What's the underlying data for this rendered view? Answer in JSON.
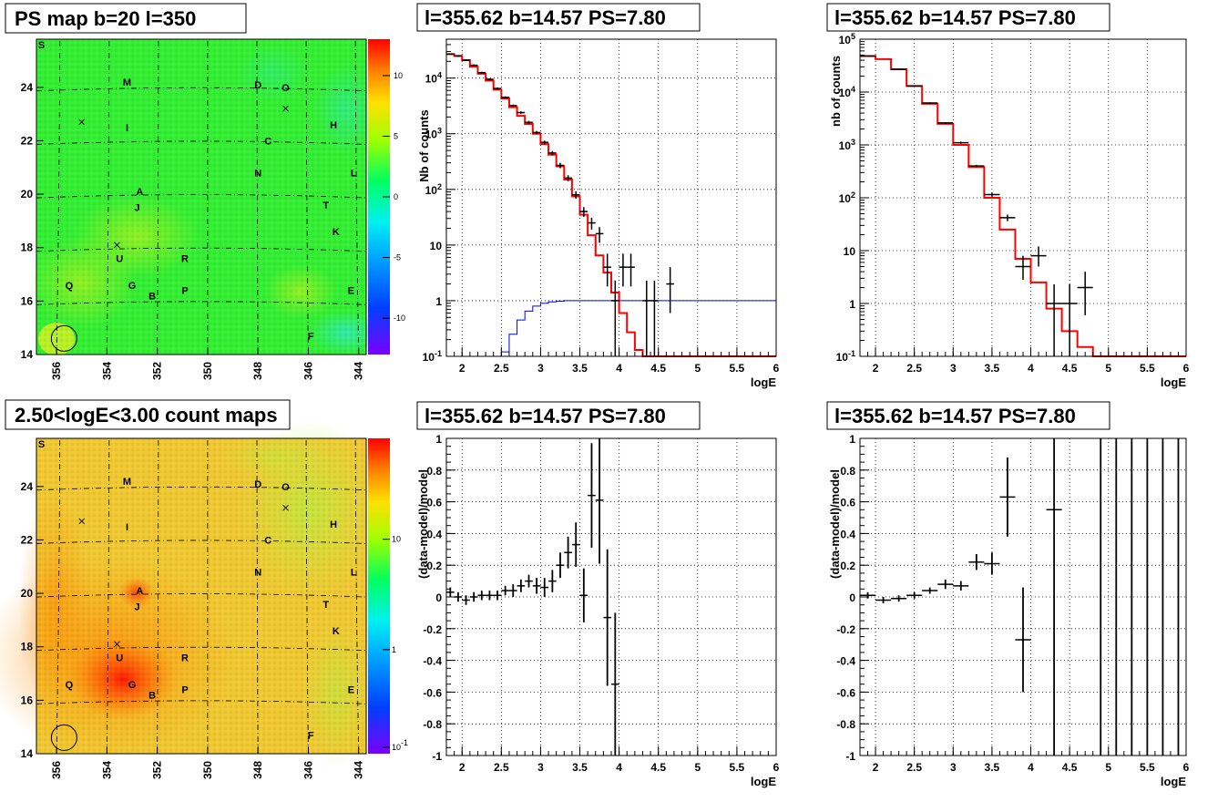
{
  "chart_data": [
    {
      "type": "heatmap",
      "title": "PS map b=20 l=350",
      "x_ticks": [
        "356",
        "354",
        "352",
        "350",
        "348",
        "346",
        "344"
      ],
      "y_ticks": [
        "14",
        "16",
        "18",
        "20",
        "22",
        "24"
      ],
      "xlim": [
        356.8,
        343.7
      ],
      "ylim": [
        14,
        25.8
      ],
      "colorbar_ticks": [
        "10",
        "5",
        "0",
        "-5",
        "-10"
      ],
      "colorbar_range": [
        -13,
        13
      ],
      "colorscale": "rainbow",
      "background_color": "#33ee33",
      "source_labels": [
        {
          "text": "S",
          "l": 356.6,
          "b": 25.6
        },
        {
          "text": "M",
          "l": 353.2,
          "b": 24.2
        },
        {
          "text": "D",
          "l": 348.0,
          "b": 24.1
        },
        {
          "text": "O",
          "l": 346.9,
          "b": 24.0
        },
        {
          "text": "I",
          "l": 353.2,
          "b": 22.5
        },
        {
          "text": "H",
          "l": 345.0,
          "b": 22.6
        },
        {
          "text": "C",
          "l": 347.6,
          "b": 22.0
        },
        {
          "text": "N",
          "l": 348.0,
          "b": 20.8
        },
        {
          "text": "L",
          "l": 344.2,
          "b": 20.8
        },
        {
          "text": "A",
          "l": 352.7,
          "b": 20.1
        },
        {
          "text": "J",
          "l": 352.8,
          "b": 19.5
        },
        {
          "text": "T",
          "l": 345.3,
          "b": 19.6
        },
        {
          "text": "K",
          "l": 344.9,
          "b": 18.6
        },
        {
          "text": "U",
          "l": 353.5,
          "b": 17.6
        },
        {
          "text": "R",
          "l": 350.9,
          "b": 17.6
        },
        {
          "text": "Q",
          "l": 355.5,
          "b": 16.6
        },
        {
          "text": "G",
          "l": 353.0,
          "b": 16.6
        },
        {
          "text": "B",
          "l": 352.2,
          "b": 16.2
        },
        {
          "text": "P",
          "l": 350.9,
          "b": 16.4
        },
        {
          "text": "E",
          "l": 344.3,
          "b": 16.4
        },
        {
          "text": "F",
          "l": 345.9,
          "b": 14.7
        }
      ],
      "crosses": [
        {
          "l": 355.0,
          "b": 22.7
        },
        {
          "l": 346.9,
          "b": 23.2
        },
        {
          "l": 353.6,
          "b": 18.1
        }
      ],
      "circle": {
        "l": 355.7,
        "b": 14.6
      }
    },
    {
      "type": "line",
      "title": "l=355.62 b=14.57 PS=7.80",
      "xlabel": "logE",
      "ylabel": "Nb of counts",
      "xlim": [
        1.8,
        6
      ],
      "ylim": [
        0.1,
        50000
      ],
      "yscale": "log",
      "x_ticks": [
        "2",
        "2.5",
        "3",
        "3.5",
        "4",
        "4.5",
        "5",
        "5.5",
        "6"
      ],
      "y_ticks": [
        "10^{-1}",
        "1",
        "10",
        "10^{2}",
        "10^{3}",
        "10^{4}"
      ],
      "grid": true,
      "data_points": [
        {
          "x": 1.85,
          "y": 27000,
          "err": [
            26200,
            27800
          ]
        },
        {
          "x": 1.95,
          "y": 25000,
          "err": [
            24200,
            25800
          ]
        },
        {
          "x": 2.05,
          "y": 21000,
          "err": [
            20300,
            21700
          ]
        },
        {
          "x": 2.15,
          "y": 17000,
          "err": [
            16400,
            17600
          ]
        },
        {
          "x": 2.25,
          "y": 12500,
          "err": [
            12000,
            13000
          ]
        },
        {
          "x": 2.35,
          "y": 9500,
          "err": [
            9100,
            9900
          ]
        },
        {
          "x": 2.45,
          "y": 6500,
          "err": [
            6200,
            6800
          ]
        },
        {
          "x": 2.55,
          "y": 4500,
          "err": [
            4300,
            4700
          ]
        },
        {
          "x": 2.65,
          "y": 3200,
          "err": [
            3050,
            3350
          ]
        },
        {
          "x": 2.75,
          "y": 2400,
          "err": [
            2270,
            2530
          ]
        },
        {
          "x": 2.85,
          "y": 1600,
          "err": [
            1500,
            1700
          ]
        },
        {
          "x": 2.95,
          "y": 1050,
          "err": [
            980,
            1120
          ]
        },
        {
          "x": 3.05,
          "y": 700,
          "err": [
            650,
            750
          ]
        },
        {
          "x": 3.15,
          "y": 450,
          "err": [
            410,
            490
          ]
        },
        {
          "x": 3.25,
          "y": 270,
          "err": [
            240,
            300
          ]
        },
        {
          "x": 3.35,
          "y": 160,
          "err": [
            140,
            180
          ]
        },
        {
          "x": 3.45,
          "y": 80,
          "err": [
            68,
            92
          ]
        },
        {
          "x": 3.55,
          "y": 40,
          "err": [
            32,
            48
          ]
        },
        {
          "x": 3.65,
          "y": 25,
          "err": [
            19,
            31
          ]
        },
        {
          "x": 3.75,
          "y": 16,
          "err": [
            11,
            21
          ]
        },
        {
          "x": 3.85,
          "y": 4,
          "err": [
            1.8,
            7
          ]
        },
        {
          "x": 3.95,
          "y": 1,
          "err": [
            0.1,
            2.3
          ]
        },
        {
          "x": 4.05,
          "y": 4,
          "err": [
            1.8,
            7
          ]
        },
        {
          "x": 4.15,
          "y": 4,
          "err": [
            1.8,
            7
          ]
        },
        {
          "x": 4.35,
          "y": 1,
          "err": [
            0.1,
            2.3
          ]
        },
        {
          "x": 4.45,
          "y": 1,
          "err": [
            0.1,
            2.3
          ]
        },
        {
          "x": 4.65,
          "y": 2,
          "err": [
            0.6,
            4
          ]
        }
      ],
      "model_steps": {
        "edges": [
          1.8,
          1.9,
          2.0,
          2.1,
          2.2,
          2.3,
          2.4,
          2.5,
          2.6,
          2.7,
          2.8,
          2.9,
          3.0,
          3.1,
          3.2,
          3.3,
          3.4,
          3.5,
          3.6,
          3.7,
          3.8,
          3.9,
          4.0,
          4.1,
          4.2,
          4.3,
          4.4,
          4.5,
          6.0
        ],
        "values": [
          27000,
          25000,
          21000,
          16000,
          12000,
          9000,
          6200,
          4300,
          3000,
          2100,
          1500,
          1000,
          650,
          420,
          260,
          150,
          75,
          35,
          15,
          6.5,
          3.2,
          1.4,
          0.6,
          0.27,
          0.13,
          0.1,
          0.1,
          0.1
        ]
      },
      "background_steps": {
        "edges": [
          2.5,
          2.6,
          2.7,
          2.8,
          2.9,
          3.0,
          3.1,
          3.2,
          3.3,
          3.4,
          3.5,
          6.0
        ],
        "values": [
          0.12,
          0.25,
          0.45,
          0.65,
          0.8,
          0.9,
          0.95,
          0.98,
          1.0,
          1.0,
          1.0
        ]
      }
    },
    {
      "type": "line",
      "title": "l=355.62 b=14.57 PS=7.80",
      "xlabel": "logE",
      "ylabel": "nb of counts",
      "xlim": [
        1.8,
        6
      ],
      "ylim": [
        0.1,
        100000
      ],
      "yscale": "log",
      "x_ticks": [
        "2",
        "2.5",
        "3",
        "3.5",
        "4",
        "4.5",
        "5",
        "5.5",
        "6"
      ],
      "y_ticks": [
        "10^{-1}",
        "1",
        "10",
        "10^{2}",
        "10^{3}",
        "10^{4}",
        "10^{5}"
      ],
      "grid": true,
      "data_points": [
        {
          "x": 1.9,
          "y": 48000,
          "err": [
            47000,
            49000
          ]
        },
        {
          "x": 2.3,
          "y": 27000,
          "err": [
            26500,
            27500
          ]
        },
        {
          "x": 2.5,
          "y": 13000,
          "err": [
            12700,
            13300
          ]
        },
        {
          "x": 2.7,
          "y": 6200,
          "err": [
            6000,
            6400
          ]
        },
        {
          "x": 2.9,
          "y": 2600,
          "err": [
            2500,
            2700
          ]
        },
        {
          "x": 3.1,
          "y": 1100,
          "err": [
            1050,
            1150
          ]
        },
        {
          "x": 3.3,
          "y": 400,
          "err": [
            380,
            420
          ]
        },
        {
          "x": 3.5,
          "y": 115,
          "err": [
            105,
            125
          ]
        },
        {
          "x": 3.7,
          "y": 42,
          "err": [
            36,
            48
          ]
        },
        {
          "x": 3.9,
          "y": 5,
          "err": [
            2.8,
            8
          ]
        },
        {
          "x": 4.1,
          "y": 8,
          "err": [
            5,
            12
          ]
        },
        {
          "x": 4.3,
          "y": 1,
          "err": [
            0.1,
            2.3
          ]
        },
        {
          "x": 4.5,
          "y": 1,
          "err": [
            0.1,
            2.3
          ]
        },
        {
          "x": 4.7,
          "y": 2,
          "err": [
            0.6,
            4
          ]
        }
      ],
      "model_steps": {
        "edges": [
          1.8,
          2.0,
          2.2,
          2.4,
          2.6,
          2.8,
          3.0,
          3.2,
          3.4,
          3.6,
          3.8,
          4.0,
          4.2,
          4.4,
          4.6,
          4.8,
          6.0
        ],
        "values": [
          48000,
          42000,
          27000,
          13000,
          6000,
          2500,
          1000,
          380,
          100,
          25,
          7,
          2.5,
          0.8,
          0.3,
          0.15,
          0.1
        ]
      }
    },
    {
      "type": "heatmap",
      "title": "2.50<logE<3.00 count maps",
      "x_ticks": [
        "356",
        "354",
        "352",
        "350",
        "348",
        "346",
        "344"
      ],
      "y_ticks": [
        "14",
        "16",
        "18",
        "20",
        "22",
        "24"
      ],
      "xlim": [
        356.8,
        343.7
      ],
      "ylim": [
        14,
        25.8
      ],
      "colorbar_ticks": [
        "10",
        "1",
        "10^{-1}"
      ],
      "colorscale": "rainbow-log",
      "background_color": "#f0c832",
      "hotspot": {
        "l": 353.0,
        "b": 16.8
      },
      "source_labels": [
        {
          "text": "S",
          "l": 356.6,
          "b": 25.6
        },
        {
          "text": "M",
          "l": 353.2,
          "b": 24.2
        },
        {
          "text": "D",
          "l": 348.0,
          "b": 24.1
        },
        {
          "text": "O",
          "l": 346.9,
          "b": 24.0
        },
        {
          "text": "I",
          "l": 353.2,
          "b": 22.5
        },
        {
          "text": "H",
          "l": 345.0,
          "b": 22.6
        },
        {
          "text": "C",
          "l": 347.6,
          "b": 22.0
        },
        {
          "text": "N",
          "l": 348.0,
          "b": 20.8
        },
        {
          "text": "L",
          "l": 344.2,
          "b": 20.8
        },
        {
          "text": "A",
          "l": 352.7,
          "b": 20.1
        },
        {
          "text": "J",
          "l": 352.8,
          "b": 19.5
        },
        {
          "text": "T",
          "l": 345.3,
          "b": 19.6
        },
        {
          "text": "K",
          "l": 344.9,
          "b": 18.6
        },
        {
          "text": "U",
          "l": 353.5,
          "b": 17.6
        },
        {
          "text": "R",
          "l": 350.9,
          "b": 17.6
        },
        {
          "text": "Q",
          "l": 355.5,
          "b": 16.6
        },
        {
          "text": "G",
          "l": 353.0,
          "b": 16.6
        },
        {
          "text": "B",
          "l": 352.2,
          "b": 16.2
        },
        {
          "text": "P",
          "l": 350.9,
          "b": 16.4
        },
        {
          "text": "E",
          "l": 344.3,
          "b": 16.4
        },
        {
          "text": "F",
          "l": 345.9,
          "b": 14.7
        }
      ],
      "crosses": [
        {
          "l": 355.0,
          "b": 22.7
        },
        {
          "l": 346.9,
          "b": 23.2
        },
        {
          "l": 353.6,
          "b": 18.1
        }
      ],
      "circle": {
        "l": 355.7,
        "b": 14.6
      }
    },
    {
      "type": "scatter",
      "title": "l=355.62 b=14.57 PS=7.80",
      "xlabel": "logE",
      "ylabel": "(data-model)/model",
      "xlim": [
        1.8,
        6
      ],
      "ylim": [
        -1,
        1
      ],
      "x_ticks": [
        "2",
        "2.5",
        "3",
        "3.5",
        "4",
        "4.5",
        "5",
        "5.5",
        "6"
      ],
      "y_ticks": [
        "-1",
        "-0.8",
        "-0.6",
        "-0.4",
        "-0.2",
        "0",
        "0.2",
        "0.4",
        "0.6",
        "0.8",
        "1"
      ],
      "grid": true,
      "points": [
        {
          "x": 1.85,
          "y": 0.03,
          "e": 0.03
        },
        {
          "x": 1.95,
          "y": 0.0,
          "e": 0.03
        },
        {
          "x": 2.05,
          "y": -0.02,
          "e": 0.03
        },
        {
          "x": 2.15,
          "y": 0.0,
          "e": 0.03
        },
        {
          "x": 2.25,
          "y": 0.01,
          "e": 0.03
        },
        {
          "x": 2.35,
          "y": 0.01,
          "e": 0.03
        },
        {
          "x": 2.45,
          "y": 0.01,
          "e": 0.03
        },
        {
          "x": 2.55,
          "y": 0.04,
          "e": 0.03
        },
        {
          "x": 2.65,
          "y": 0.04,
          "e": 0.04
        },
        {
          "x": 2.75,
          "y": 0.07,
          "e": 0.04
        },
        {
          "x": 2.85,
          "y": 0.1,
          "e": 0.04
        },
        {
          "x": 2.95,
          "y": 0.07,
          "e": 0.05
        },
        {
          "x": 3.05,
          "y": 0.06,
          "e": 0.06
        },
        {
          "x": 3.15,
          "y": 0.1,
          "e": 0.07
        },
        {
          "x": 3.25,
          "y": 0.2,
          "e": 0.08
        },
        {
          "x": 3.35,
          "y": 0.28,
          "e": 0.1
        },
        {
          "x": 3.45,
          "y": 0.33,
          "e": 0.14
        },
        {
          "x": 3.55,
          "y": 0.01,
          "e": 0.17
        },
        {
          "x": 3.65,
          "y": 0.64,
          "e": 0.33
        },
        {
          "x": 3.75,
          "y": 0.61,
          "e": 0.4
        },
        {
          "x": 3.85,
          "y": -0.13,
          "e": 0.43
        },
        {
          "x": 3.95,
          "y": -0.55,
          "e": 0.45
        }
      ]
    },
    {
      "type": "scatter",
      "title": "l=355.62 b=14.57 PS=7.80",
      "xlabel": "logE",
      "ylabel": "(data-model)/model",
      "xlim": [
        1.8,
        6
      ],
      "ylim": [
        -1,
        1
      ],
      "x_ticks": [
        "2",
        "2.5",
        "3",
        "3.5",
        "4",
        "4.5",
        "5",
        "5.5",
        "6"
      ],
      "y_ticks": [
        "-1",
        "-0.8",
        "-0.6",
        "-0.4",
        "-0.2",
        "0",
        "0.2",
        "0.4",
        "0.6",
        "0.8",
        "1"
      ],
      "grid": true,
      "points": [
        {
          "x": 1.9,
          "y": 0.01,
          "e": 0.02
        },
        {
          "x": 2.1,
          "y": -0.02,
          "e": 0.02
        },
        {
          "x": 2.3,
          "y": -0.01,
          "e": 0.02
        },
        {
          "x": 2.5,
          "y": 0.01,
          "e": 0.02
        },
        {
          "x": 2.7,
          "y": 0.04,
          "e": 0.02
        },
        {
          "x": 2.9,
          "y": 0.08,
          "e": 0.03
        },
        {
          "x": 3.1,
          "y": 0.07,
          "e": 0.03
        },
        {
          "x": 3.3,
          "y": 0.22,
          "e": 0.05
        },
        {
          "x": 3.5,
          "y": 0.21,
          "e": 0.07
        },
        {
          "x": 3.7,
          "y": 0.63,
          "e": 0.25
        },
        {
          "x": 3.9,
          "y": -0.27,
          "e": 0.33
        },
        {
          "x": 4.3,
          "y": 0.55,
          "e": 2
        },
        {
          "x": 4.9,
          "y": 1,
          "e": 2
        },
        {
          "x": 5.1,
          "y": 1,
          "e": 2
        },
        {
          "x": 5.3,
          "y": 1,
          "e": 2
        },
        {
          "x": 5.5,
          "y": 1,
          "e": 2
        },
        {
          "x": 5.7,
          "y": 1,
          "e": 2
        },
        {
          "x": 5.9,
          "y": 1,
          "e": 2
        }
      ]
    }
  ]
}
